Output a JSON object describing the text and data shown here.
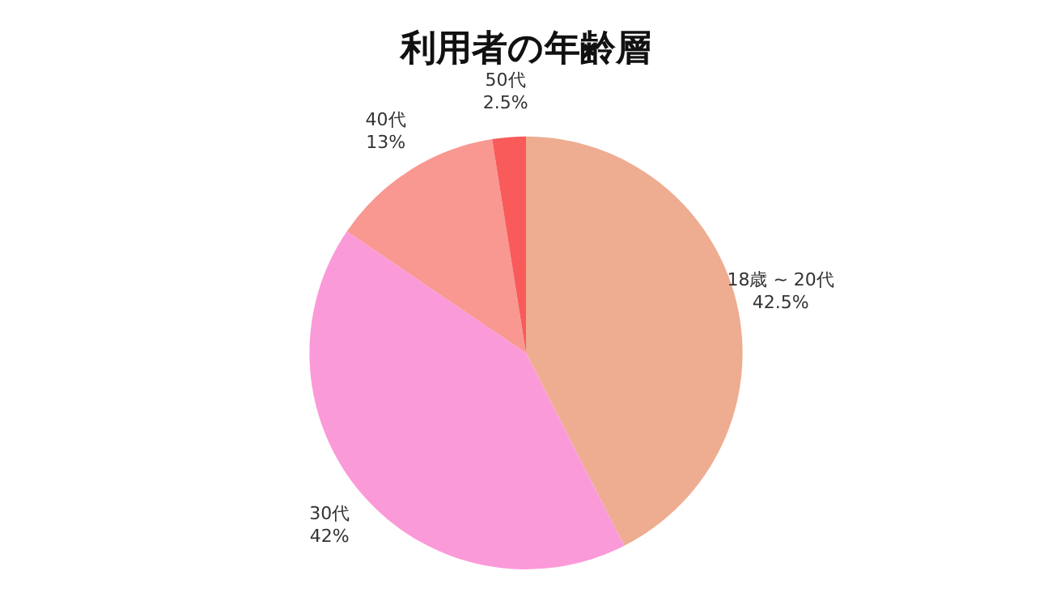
{
  "chart_data": {
    "type": "pie",
    "title": "利用者の年齢層",
    "categories": [
      "18歳 ~ 20代",
      "30代",
      "40代",
      "50代"
    ],
    "values": [
      42.5,
      42,
      13,
      2.5
    ],
    "colors": [
      "#eeac91",
      "#fb9ad8",
      "#f99791",
      "#f95a5a"
    ],
    "value_labels": [
      "42.5%",
      "42%",
      "13%",
      "2.5%"
    ]
  }
}
